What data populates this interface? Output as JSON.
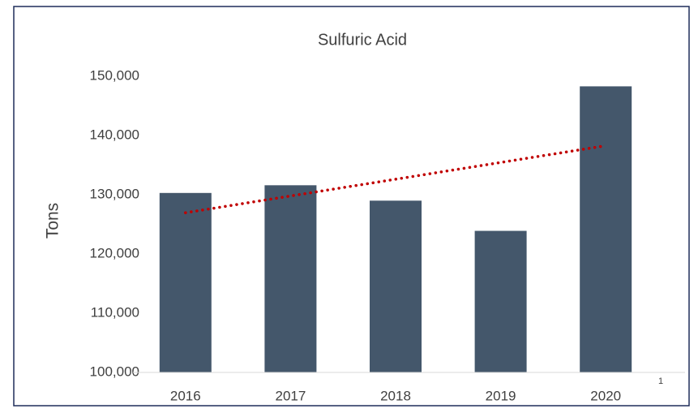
{
  "chart_data": {
    "type": "bar",
    "title": "Sulfuric Acid",
    "y_label": "Tons",
    "categories": [
      "2016",
      "2017",
      "2018",
      "2019",
      "2020"
    ],
    "values": [
      130300,
      131600,
      129000,
      123900,
      148300
    ],
    "color": "#44576b",
    "trendline": {
      "kind": "linear",
      "color": "#c00000",
      "style": "dotted"
    },
    "footnote": "1",
    "ylim": [
      100000,
      150000
    ],
    "yticks": [
      {
        "value": 100000,
        "label": "100,000"
      },
      {
        "value": 110000,
        "label": "110,000"
      },
      {
        "value": 120000,
        "label": "120,000"
      },
      {
        "value": 130000,
        "label": "130,000"
      },
      {
        "value": 140000,
        "label": "140,000"
      },
      {
        "value": 150000,
        "label": "150,000"
      }
    ],
    "grid": false
  }
}
